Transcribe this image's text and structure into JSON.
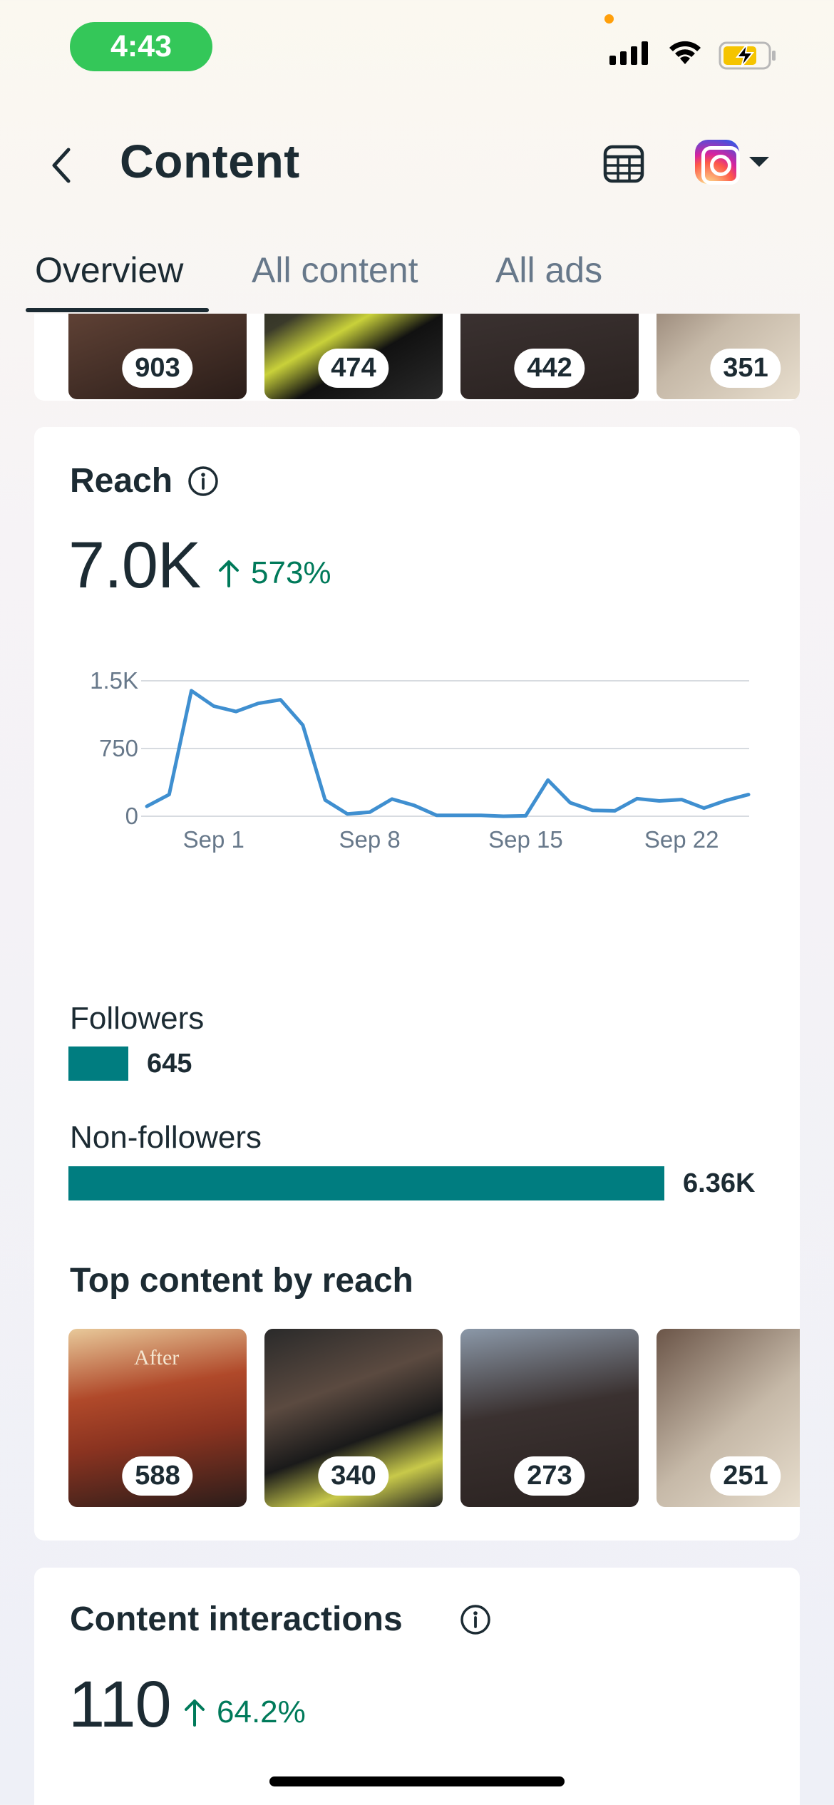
{
  "status_bar": {
    "time": "4:43"
  },
  "header": {
    "title": "Content"
  },
  "tabs": [
    {
      "label": "Overview",
      "active": true
    },
    {
      "label": "All content",
      "active": false
    },
    {
      "label": "All ads",
      "active": false
    }
  ],
  "top_strip": {
    "counts": [
      "903",
      "474",
      "442",
      "351"
    ]
  },
  "reach": {
    "title": "Reach",
    "total": "7.0K",
    "change": "573%",
    "legend": [
      {
        "label": "Followers",
        "value": "645",
        "fraction": 0.1
      },
      {
        "label": "Non-followers",
        "value": "6.36K",
        "fraction": 1.0
      }
    ],
    "top_content_title": "Top content by reach",
    "top_content_counts": [
      "588",
      "340",
      "273",
      "251"
    ],
    "top_content_overlay_text": "After"
  },
  "chart_data": {
    "type": "line",
    "title": "Reach",
    "xlabel": "",
    "ylabel": "",
    "ylim": [
      0,
      1500
    ],
    "y_ticks": [
      "0",
      "750",
      "1.5K"
    ],
    "y_tick_values": [
      0,
      750,
      1500
    ],
    "x_tick_labels": [
      "Sep 1",
      "Sep 8",
      "Sep 15",
      "Sep 22"
    ],
    "x_tick_days": [
      4,
      11,
      18,
      25
    ],
    "series": [
      {
        "name": "Reach",
        "color": "#3f8fd0",
        "x": [
          1,
          2,
          3,
          4,
          5,
          6,
          7,
          8,
          9,
          10,
          11,
          12,
          13,
          14,
          15,
          16,
          17,
          18,
          19,
          20,
          21,
          22,
          23,
          24,
          25,
          26,
          27,
          28
        ],
        "values": [
          110,
          240,
          1390,
          1220,
          1160,
          1250,
          1290,
          1010,
          180,
          25,
          45,
          190,
          120,
          10,
          10,
          10,
          0,
          5,
          400,
          150,
          65,
          60,
          195,
          170,
          185,
          90,
          175,
          240
        ]
      }
    ]
  },
  "interactions": {
    "title": "Content interactions",
    "total": "110",
    "change": "64.2%"
  }
}
